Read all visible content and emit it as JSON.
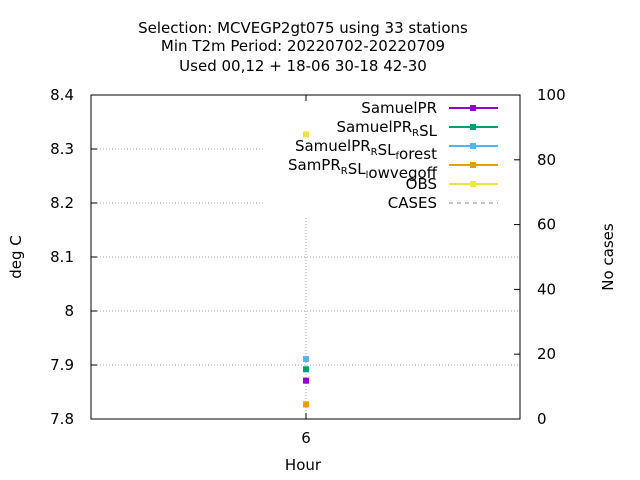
{
  "chart_data": {
    "type": "scatter",
    "title_lines": [
      "Selection: MCVEGP2gt075 using    33 stations",
      "Min T2m   Period: 20220702-20220709",
      "Used  00,12  + 18-06 30-18 42-30"
    ],
    "xlabel": "Hour",
    "ylabel": "deg C",
    "y2label": "No cases",
    "x_ticks": [
      "6"
    ],
    "ylim": [
      7.8,
      8.4
    ],
    "y_ticks": [
      "7.8",
      "7.9",
      "8",
      "8.1",
      "8.2",
      "8.3",
      "8.4"
    ],
    "y2lim": [
      0,
      100
    ],
    "y2_ticks": [
      "0",
      "20",
      "40",
      "60",
      "80",
      "100"
    ],
    "grid": true,
    "legend_placement": "top-right",
    "series": [
      {
        "name": "SamuelPR",
        "name_parts": [
          [
            "SamuelPR",
            ""
          ]
        ],
        "color": "#9400d3",
        "marker": "square",
        "x": [
          6
        ],
        "y": [
          7.871
        ]
      },
      {
        "name": "SamuelPR_RSL",
        "name_parts": [
          [
            "SamuelPR",
            ""
          ],
          [
            "R",
            "sub"
          ],
          [
            "SL",
            ""
          ]
        ],
        "color": "#009e73",
        "marker": "square",
        "x": [
          6
        ],
        "y": [
          7.892
        ]
      },
      {
        "name": "SamuelPR_RSL_forest",
        "name_parts": [
          [
            "SamuelPR",
            ""
          ],
          [
            "R",
            "sub"
          ],
          [
            "SL",
            ""
          ],
          [
            "f",
            "sub"
          ],
          [
            "orest",
            ""
          ]
        ],
        "color": "#56b4e9",
        "marker": "square",
        "x": [
          6
        ],
        "y": [
          7.911
        ]
      },
      {
        "name": "SamPR_RSL_lowvegoff",
        "name_parts": [
          [
            "SamPR",
            ""
          ],
          [
            "R",
            "sub"
          ],
          [
            "SL",
            ""
          ],
          [
            "l",
            "sub"
          ],
          [
            "owvegoff",
            ""
          ]
        ],
        "color": "#e69f00",
        "marker": "square",
        "x": [
          6
        ],
        "y": [
          7.827
        ]
      },
      {
        "name": "OBS",
        "name_parts": [
          [
            "OBS",
            ""
          ]
        ],
        "color": "#f0e442",
        "marker": "square",
        "x": [
          6
        ],
        "y": [
          8.327
        ]
      },
      {
        "name": "CASES",
        "name_parts": [
          [
            "CASES",
            ""
          ]
        ],
        "color": "#808080",
        "marker": "none",
        "dashed": true,
        "axis": "y2",
        "x": [
          6
        ],
        "y": [
          66
        ]
      }
    ]
  }
}
